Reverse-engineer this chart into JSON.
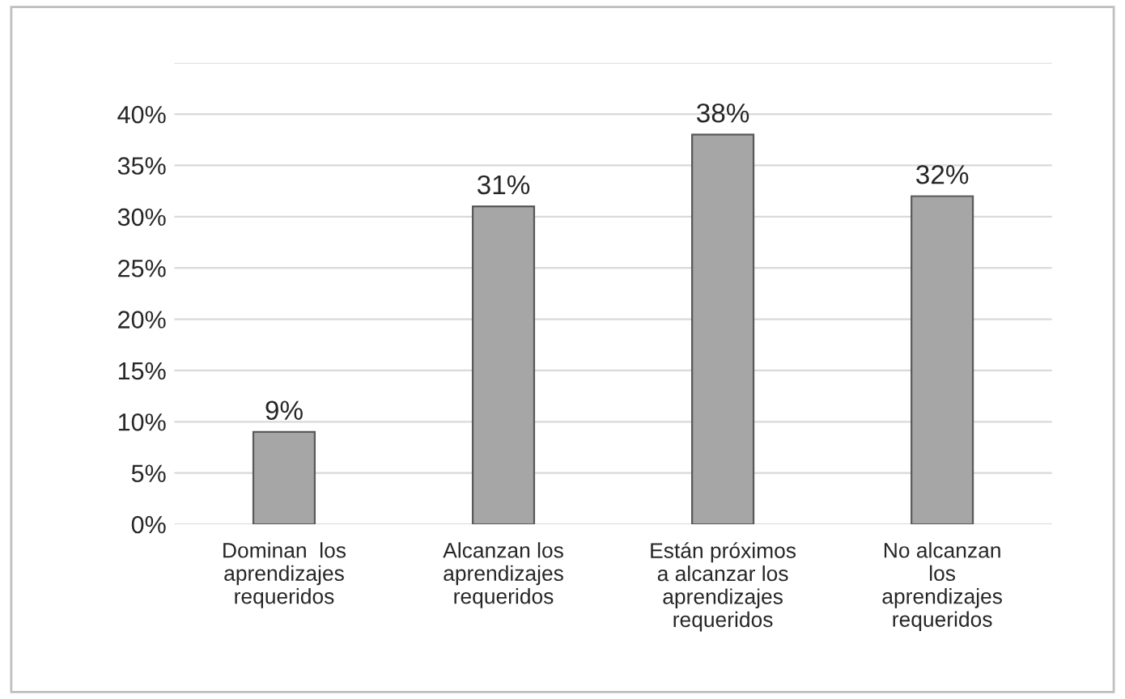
{
  "chart_data": {
    "type": "bar",
    "categories": [
      "Dominan  los\naprendizajes\nrequeridos",
      "Alcanzan los\naprendizajes\nrequeridos",
      "Están próximos\na alcanzar los\naprendizajes\nrequeridos",
      "No alcanzan\nlos\naprendizajes\nrequeridos"
    ],
    "values": [
      9,
      31,
      38,
      32
    ],
    "value_labels": [
      "9%",
      "31%",
      "38%",
      "32%"
    ],
    "color": "#a6a6a6",
    "ylim": [
      0,
      45
    ],
    "yticks": [
      {
        "value": 0,
        "label": "0%"
      },
      {
        "value": 5,
        "label": "5%"
      },
      {
        "value": 10,
        "label": "10%"
      },
      {
        "value": 15,
        "label": "15%"
      },
      {
        "value": 20,
        "label": "20%"
      },
      {
        "value": 25,
        "label": "25%"
      },
      {
        "value": 30,
        "label": "30%"
      },
      {
        "value": 35,
        "label": "35%"
      },
      {
        "value": 40,
        "label": "40%"
      },
      {
        "value": 45,
        "label": null
      }
    ],
    "grid": "y",
    "legend": false
  }
}
